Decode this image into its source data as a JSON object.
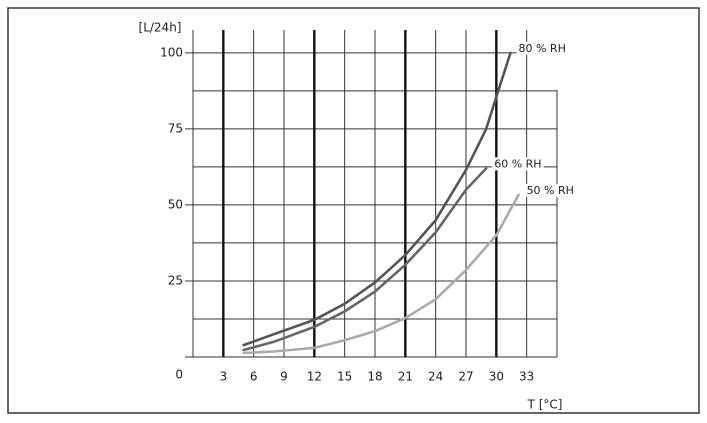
{
  "chart_data": {
    "type": "line",
    "y_label": "[L/24h]",
    "x_label": "T [°C]",
    "xlim": [
      0,
      36
    ],
    "ylim": [
      0,
      107.5
    ],
    "xticks": [
      3,
      6,
      9,
      12,
      15,
      18,
      21,
      24,
      27,
      30,
      33
    ],
    "yticks": [
      0,
      25,
      50,
      75,
      100
    ],
    "grid": true,
    "series": [
      {
        "name": "80 % RH",
        "color": "#555555",
        "x": [
          5,
          8,
          12,
          15,
          18,
          21,
          24,
          27,
          29,
          30,
          31.4
        ],
        "values": [
          3.9,
          7.5,
          12.2,
          17.5,
          24.5,
          33.5,
          45,
          61.5,
          75,
          85.5,
          100
        ]
      },
      {
        "name": "60 % RH",
        "color": "#666666",
        "x": [
          5,
          8,
          12,
          15,
          18,
          21,
          24,
          27,
          29
        ],
        "values": [
          2.3,
          5,
          9.9,
          15,
          21.5,
          30.3,
          41,
          55,
          62
        ]
      },
      {
        "name": "50 % RH",
        "color": "#aaaaaa",
        "x": [
          5,
          8,
          12,
          15,
          18,
          21,
          24,
          27,
          30,
          32.2
        ],
        "values": [
          1.3,
          1.8,
          3,
          5.5,
          8.5,
          12.8,
          19,
          28.6,
          40,
          53.3
        ]
      }
    ]
  }
}
